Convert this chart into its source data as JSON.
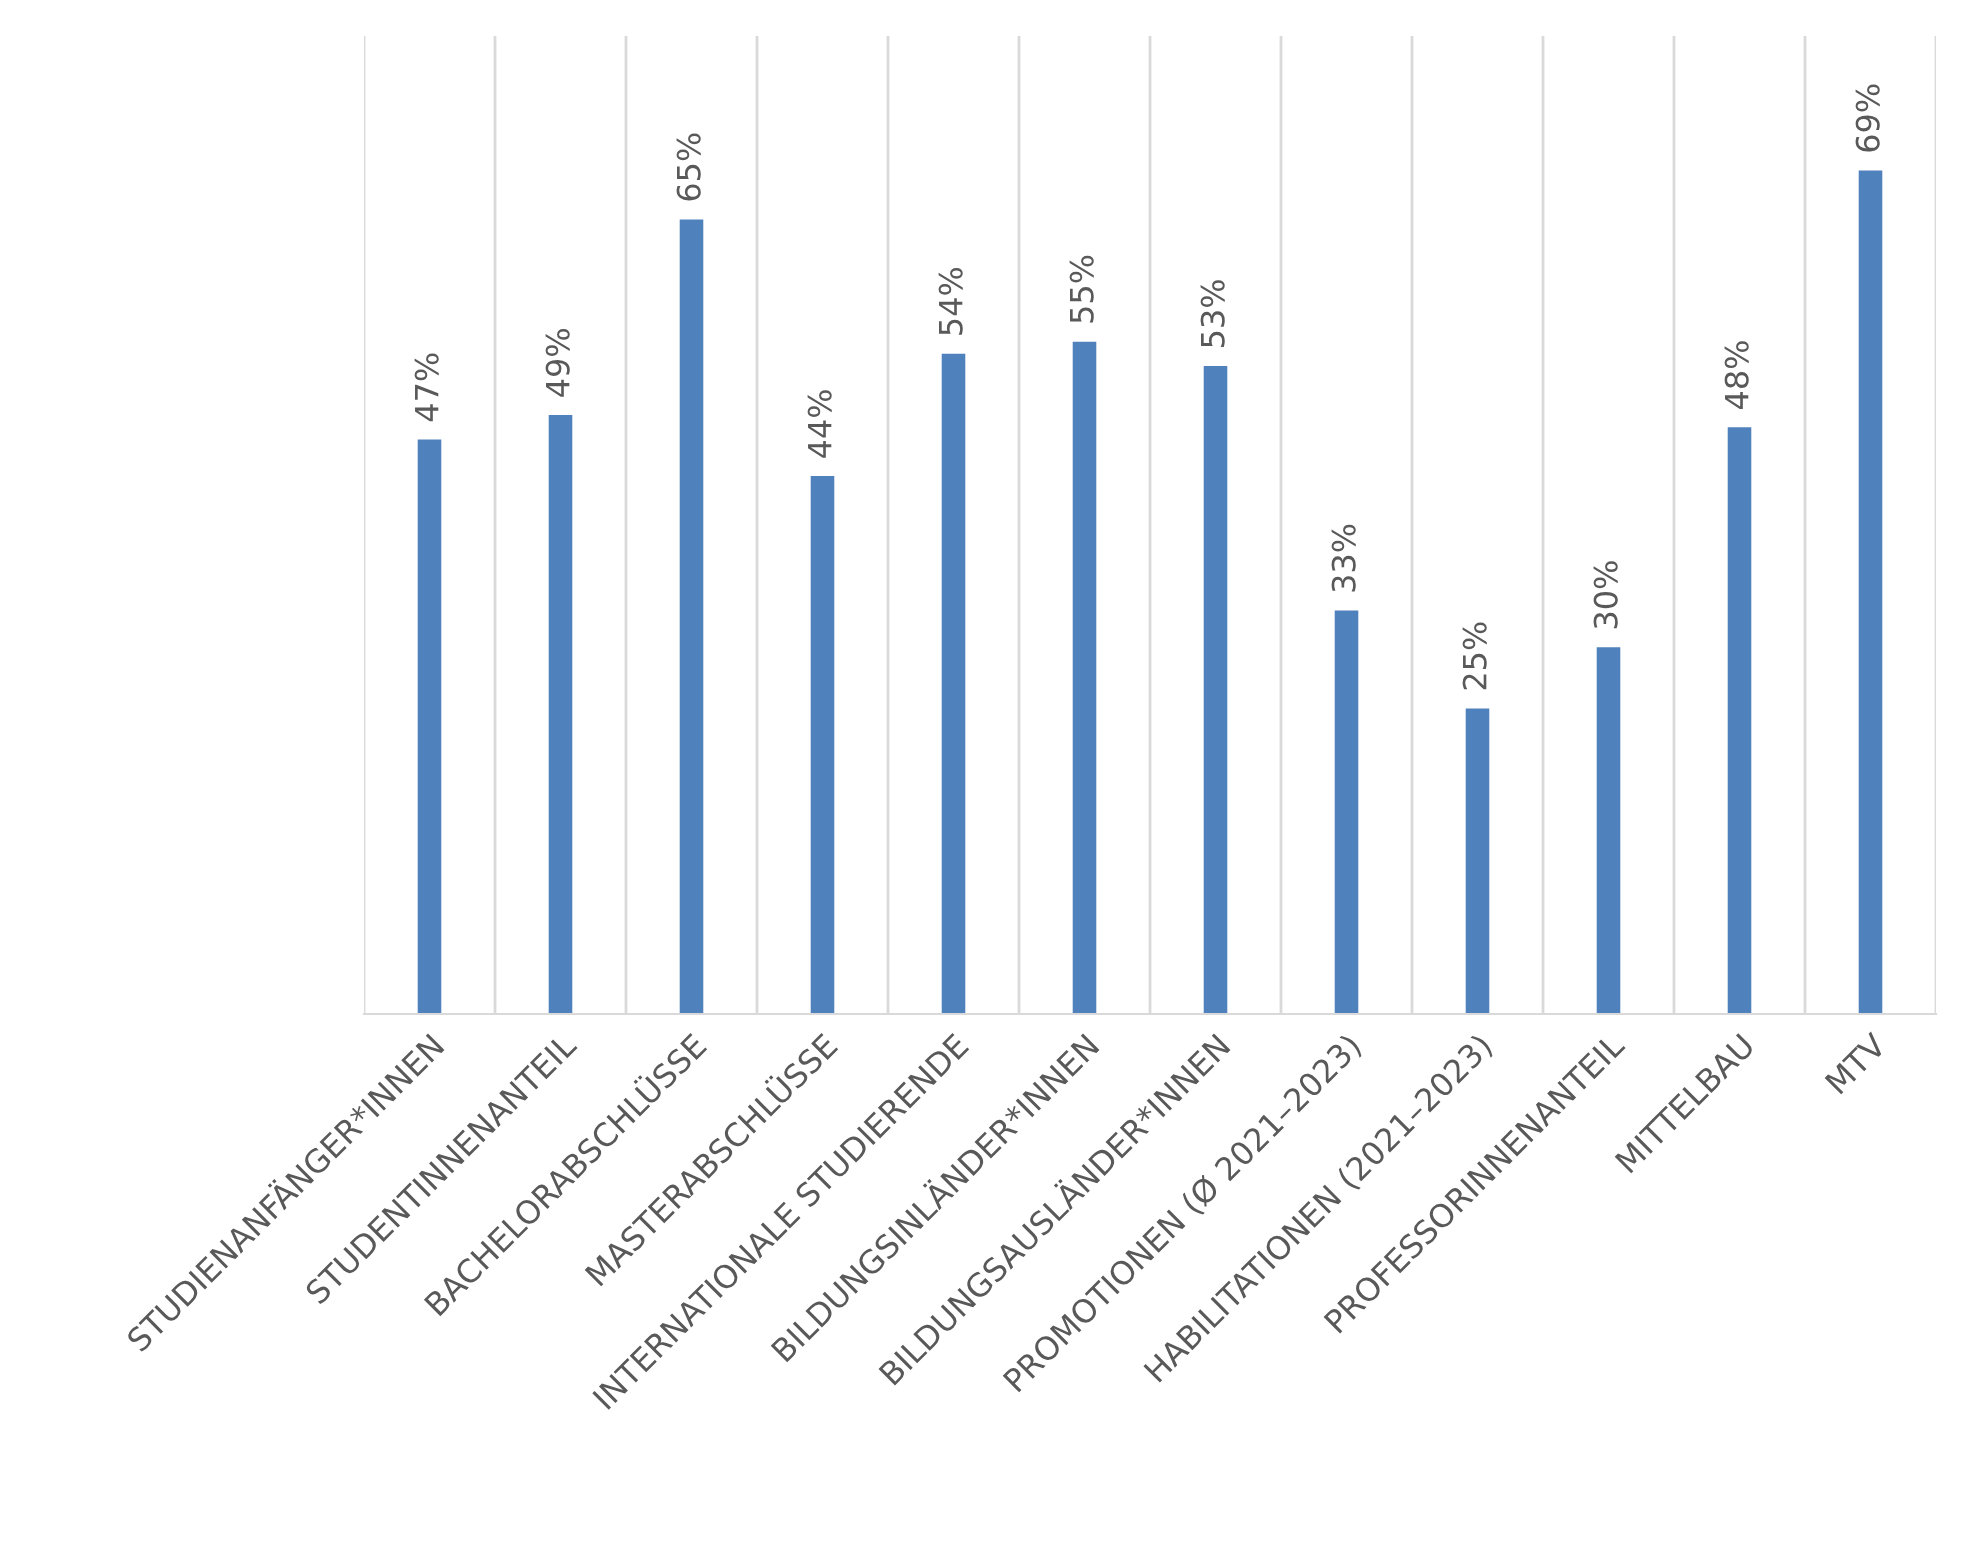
{
  "chart_data": {
    "type": "bar",
    "categories": [
      "STUDIENANFÄNGER*INNEN",
      "STUDENTINNENANTEIL",
      "BACHELORABSCHLÜSSE",
      "MASTERABSCHLÜSSE",
      "INTERNATIONALE STUDIERENDE",
      "BILDUNGSINLÄNDER*INNEN",
      "BILDUNGSAUSLÄNDER*INNEN",
      "PROMOTIONEN (Ø 2021–2023)",
      "HABILITATIONEN (2021–2023)",
      "PROFESSORINNENANTEIL",
      "MITTELBAU",
      "MTV"
    ],
    "values": [
      47,
      49,
      65,
      44,
      54,
      55,
      53,
      33,
      25,
      30,
      48,
      69
    ],
    "value_labels": [
      "47%",
      "49%",
      "65%",
      "44%",
      "54%",
      "55%",
      "53%",
      "33%",
      "25%",
      "30%",
      "48%",
      "69%"
    ],
    "color": "#4f81bd",
    "ylim": [
      0,
      80
    ],
    "tick_labels": "x",
    "grid": "x",
    "legend": false
  }
}
